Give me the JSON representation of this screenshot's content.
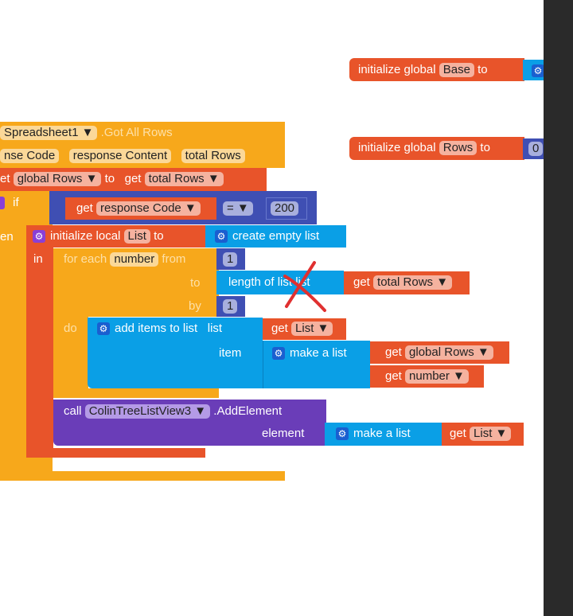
{
  "event": {
    "component": "Spreadsheet1",
    "event": ".Got All Rows",
    "params": [
      "nse Code",
      "response Content",
      "total Rows"
    ]
  },
  "set": {
    "prefix": "et",
    "var": "global Rows",
    "to": "to",
    "get": "get",
    "value": "total Rows"
  },
  "if": {
    "label": "if",
    "get": "get",
    "var": "response Code",
    "op": "=",
    "num": "200"
  },
  "then": {
    "label": "en",
    "init": "initialize local",
    "var": "List",
    "to": "to",
    "create": "create empty list",
    "in": "in"
  },
  "foreach": {
    "label": "for each",
    "var": "number",
    "from": "from",
    "from_val": "1",
    "to": "to",
    "length": "length of list  list",
    "get": "get",
    "to_var": "total Rows",
    "by": "by",
    "by_val": "1",
    "do": "do"
  },
  "add": {
    "label": "add items to list",
    "list": "list",
    "get": "get",
    "list_var": "List",
    "item": "item",
    "make": "make a list",
    "var1": "global Rows",
    "var2": "number"
  },
  "call": {
    "label": "call",
    "component": "ColinTreeListView3",
    "method": ".AddElement",
    "element": "element",
    "make": "make a list",
    "get": "get",
    "var": "List"
  },
  "globals": [
    {
      "label": "initialize global",
      "var": "Base",
      "to": "to"
    },
    {
      "label": "initialize global",
      "var": "Rows",
      "to": "to",
      "value": "0"
    }
  ],
  "colors": {
    "event": "#f7a81b",
    "variable": "#e8542a",
    "list": "#0a9fe6",
    "math": "#3f4fb3",
    "component": "#6a3db8",
    "annotation": "#e03030"
  }
}
